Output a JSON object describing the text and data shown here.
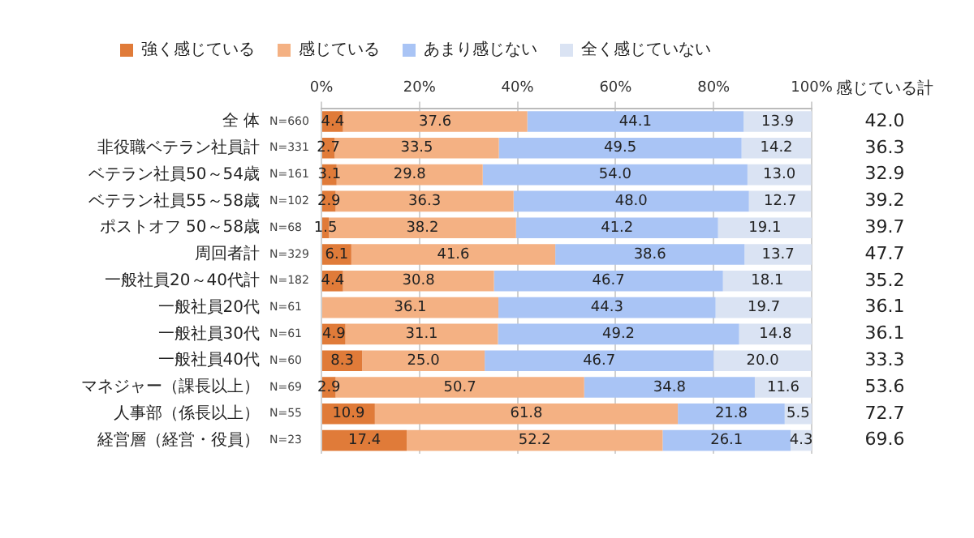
{
  "chart_data": {
    "type": "bar",
    "orientation": "horizontal",
    "stacked": true,
    "legend": "top",
    "grid": "x",
    "categories": [
      "全 体",
      "非役職ベテラン社員計",
      "ベテラン社員50～54歳",
      "ベテラン社員55～58歳",
      "ポストオフ 50～58歳",
      "周回者計",
      "一般社員20～40代計",
      "一般社員20代",
      "一般社員30代",
      "一般社員40代",
      "マネジャー（課長以上）",
      "人事部（係長以上）",
      "経営層（経営・役員）"
    ],
    "xlim": [
      0,
      100
    ],
    "xticks": [
      {
        "value": 0,
        "label": "0%"
      },
      {
        "value": 20,
        "label": "20%"
      },
      {
        "value": 40,
        "label": "40%"
      },
      {
        "value": 60,
        "label": "60%"
      },
      {
        "value": 80,
        "label": "80%"
      },
      {
        "value": 100,
        "label": "100%"
      }
    ],
    "series": [
      {
        "name": "強く感じている",
        "color": "#e07b39",
        "values": [
          4.4,
          2.7,
          3.1,
          2.9,
          1.5,
          6.1,
          4.4,
          null,
          4.9,
          8.3,
          2.9,
          10.9,
          17.4
        ],
        "value_labels": [
          "4.4",
          "2.7",
          "3.1",
          "2.9",
          "1.5",
          "6.1",
          "4.4",
          null,
          "4.9",
          "8.3",
          "2.9",
          "10.9",
          "17.4"
        ]
      },
      {
        "name": "感じている",
        "color": "#f4b183",
        "values": [
          37.6,
          33.5,
          29.8,
          36.3,
          38.2,
          41.6,
          30.8,
          36.1,
          31.1,
          25.0,
          50.7,
          61.8,
          52.2
        ],
        "value_labels": [
          "37.6",
          "33.5",
          "29.8",
          "36.3",
          "38.2",
          "41.6",
          "30.8",
          "36.1",
          "31.1",
          "25.0",
          "50.7",
          "61.8",
          "52.2"
        ]
      },
      {
        "name": "あまり感じない",
        "color": "#a9c4f5",
        "values": [
          44.1,
          49.5,
          54.0,
          48.0,
          41.2,
          38.6,
          46.7,
          44.3,
          49.2,
          46.7,
          34.8,
          21.8,
          26.1
        ],
        "value_labels": [
          "44.1",
          "49.5",
          "54.0",
          "48.0",
          "41.2",
          "38.6",
          "46.7",
          "44.3",
          "49.2",
          "46.7",
          "34.8",
          "21.8",
          "26.1"
        ]
      },
      {
        "name": "全く感じていない",
        "color": "#dae3f3",
        "values": [
          13.9,
          14.2,
          13.0,
          12.7,
          19.1,
          13.7,
          18.1,
          19.7,
          14.8,
          20.0,
          11.6,
          5.5,
          4.3
        ],
        "value_labels": [
          "13.9",
          "14.2",
          "13.0",
          "12.7",
          "19.1",
          "13.7",
          "18.1",
          "19.7",
          "14.8",
          "20.0",
          "11.6",
          "5.5",
          "4.3"
        ]
      }
    ],
    "annotations": [
      "感じている計",
      "N=660",
      "N=331",
      "N=161",
      "N=102",
      "N=68",
      "N=329",
      "N=182",
      "N=61",
      "N=61",
      "N=60",
      "N=69",
      "N=55",
      "N=23",
      "42.0",
      "36.3",
      "32.9",
      "39.2",
      "39.7",
      "47.7",
      "35.2",
      "36.1",
      "36.1",
      "33.3",
      "53.6",
      "72.7",
      "69.6"
    ]
  }
}
